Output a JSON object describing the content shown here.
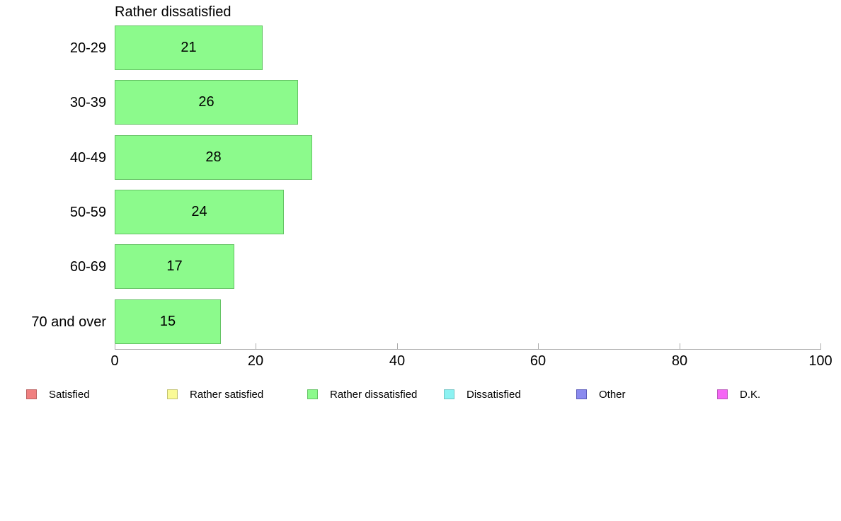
{
  "chart_data": {
    "type": "bar",
    "orientation": "horizontal",
    "title": "Rather dissatisfied",
    "categories": [
      "20-29",
      "30-39",
      "40-49",
      "50-59",
      "60-69",
      "70 and over"
    ],
    "values": [
      21,
      26,
      28,
      24,
      17,
      15
    ],
    "bar_labels": [
      21,
      26,
      28,
      24,
      17,
      15
    ],
    "xlabel": "",
    "ylabel": "",
    "xlim": [
      0,
      100
    ],
    "xticks": [
      0,
      20,
      40,
      60,
      80,
      100
    ],
    "grid": false,
    "legend_position": "bottom",
    "legend": [
      {
        "label": "Satisfied",
        "fill": "#F08080",
        "border": "#BC6262"
      },
      {
        "label": "Rather satisfied",
        "fill": "#FAFA96",
        "border": "#C2C270"
      },
      {
        "label": "Rather dissatisfied",
        "fill": "#8CFA8C",
        "border": "#64C364"
      },
      {
        "label": "Dissatisfied",
        "fill": "#8CF2F2",
        "border": "#72C4C4"
      },
      {
        "label": "Other",
        "fill": "#8A8AEF",
        "border": "#5C5CBB"
      },
      {
        "label": "D.K.",
        "fill": "#F567F5",
        "border": "#BC58BC"
      }
    ],
    "series_color": {
      "fill": "#8CFA8C",
      "border": "#64C364"
    },
    "axis_color": "#ABABAB"
  }
}
